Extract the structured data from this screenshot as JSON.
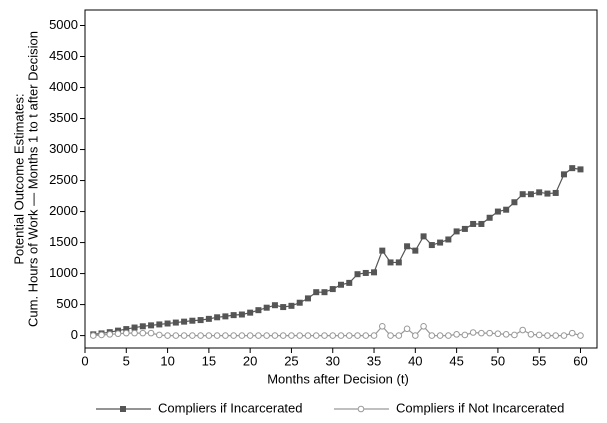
{
  "chart_data": {
    "type": "line",
    "xlabel": "Months after Decision (t)",
    "ylabel": [
      "Potential Outcome Estimates:",
      "Cum. Hours of Work — Months 1 to t after Decision"
    ],
    "x": [
      1,
      2,
      3,
      4,
      5,
      6,
      7,
      8,
      9,
      10,
      11,
      12,
      13,
      14,
      15,
      16,
      17,
      18,
      19,
      20,
      21,
      22,
      23,
      24,
      25,
      26,
      27,
      28,
      29,
      30,
      31,
      32,
      33,
      34,
      35,
      36,
      37,
      38,
      39,
      40,
      41,
      42,
      43,
      44,
      45,
      46,
      47,
      48,
      49,
      50,
      51,
      52,
      53,
      54,
      55,
      56,
      57,
      58,
      59,
      60
    ],
    "series": [
      {
        "name": "Compliers if Incarcerated",
        "color": "#555555",
        "marker": "square",
        "values": [
          20,
          35,
          55,
          80,
          105,
          130,
          150,
          165,
          180,
          195,
          210,
          225,
          240,
          250,
          270,
          295,
          310,
          330,
          340,
          370,
          410,
          450,
          490,
          460,
          480,
          530,
          600,
          700,
          700,
          750,
          820,
          850,
          990,
          1010,
          1020,
          1370,
          1180,
          1180,
          1440,
          1370,
          1600,
          1460,
          1500,
          1550,
          1680,
          1720,
          1800,
          1800,
          1900,
          2000,
          2030,
          2150,
          2280,
          2280,
          2310,
          2290,
          2300,
          2600,
          2700,
          2680
        ]
      },
      {
        "name": "Compliers if Not Incarcerated",
        "color": "#999999",
        "marker": "circle",
        "values": [
          0,
          10,
          20,
          30,
          40,
          40,
          40,
          40,
          10,
          0,
          0,
          0,
          0,
          0,
          0,
          0,
          0,
          0,
          0,
          0,
          0,
          0,
          0,
          0,
          0,
          0,
          0,
          0,
          0,
          0,
          0,
          0,
          0,
          0,
          0,
          150,
          0,
          0,
          110,
          0,
          150,
          0,
          0,
          0,
          20,
          10,
          50,
          40,
          40,
          30,
          20,
          10,
          90,
          20,
          10,
          0,
          0,
          0,
          40,
          0
        ]
      }
    ],
    "xlim": [
      0,
      62
    ],
    "xticks": [
      0,
      5,
      10,
      15,
      20,
      25,
      30,
      35,
      40,
      45,
      50,
      55,
      60
    ],
    "ylim": [
      -200,
      5250
    ],
    "yticks": [
      0,
      500,
      1000,
      1500,
      2000,
      2500,
      3000,
      3500,
      4000,
      4500,
      5000
    ]
  }
}
